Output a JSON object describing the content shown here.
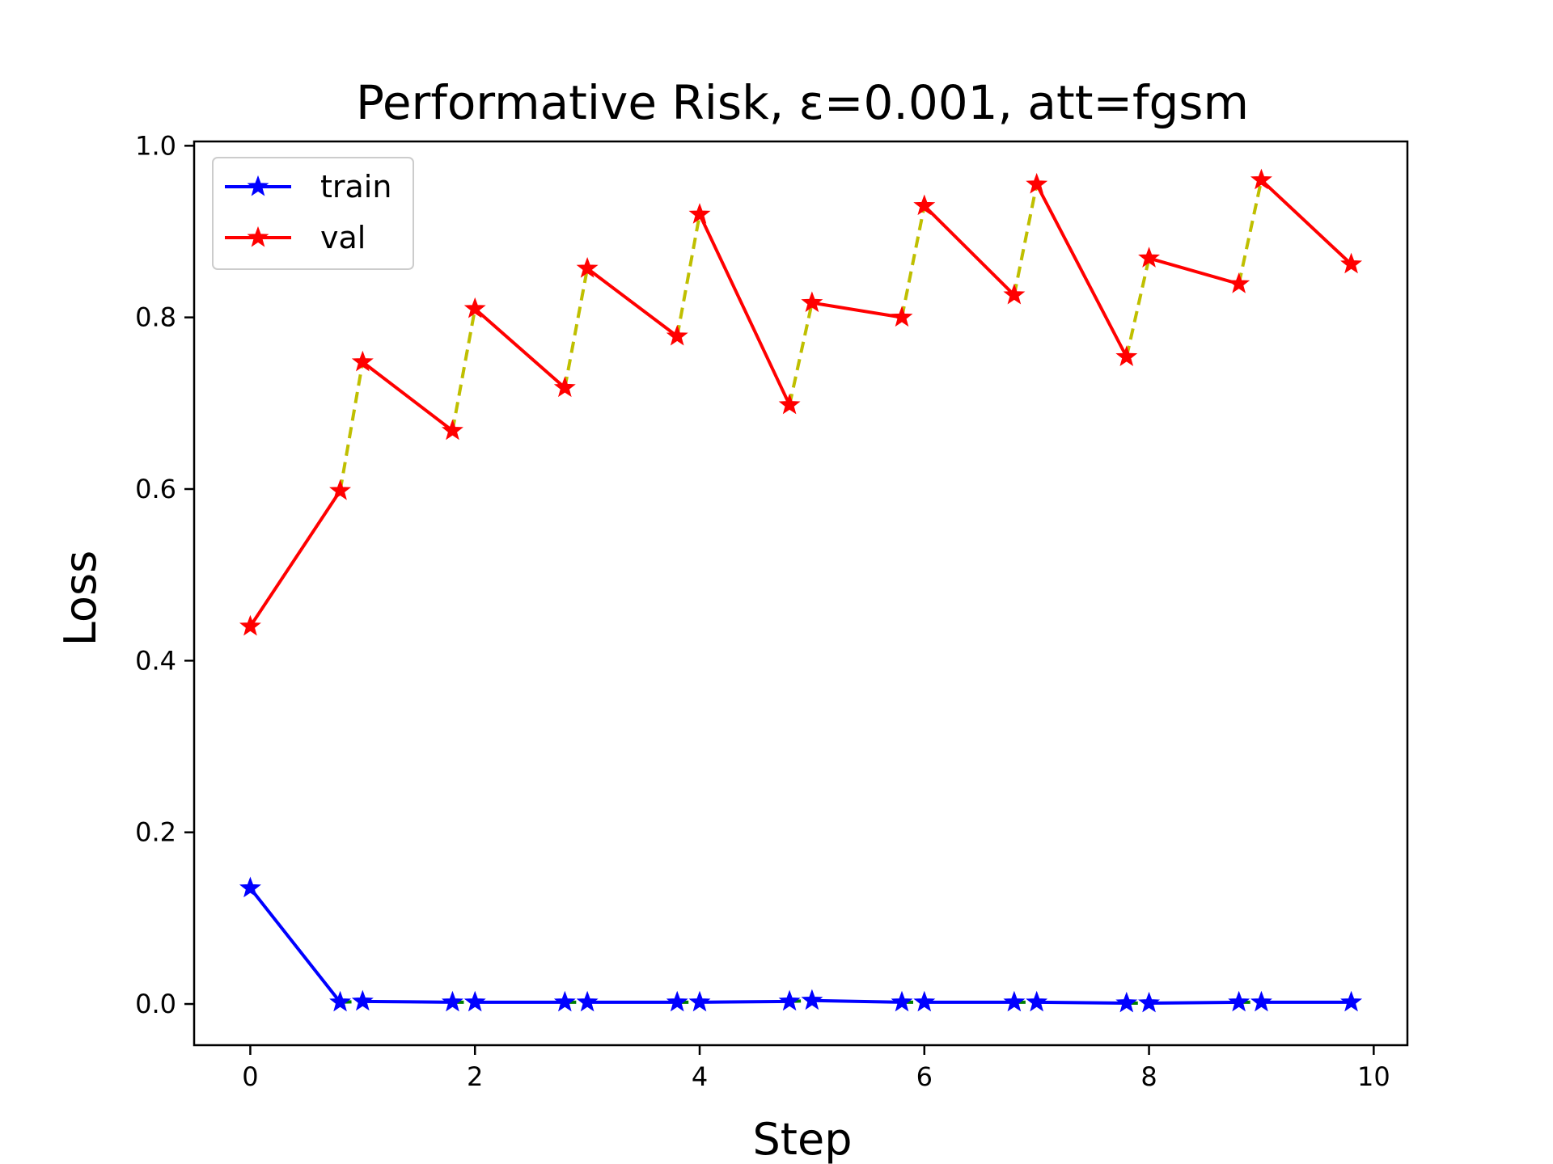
{
  "chart_data": {
    "type": "line",
    "title": "Performative Risk, ε=0.001, att=fgsm",
    "xlabel": "Step",
    "ylabel": "Loss",
    "xlim": [
      -0.5,
      10.3
    ],
    "ylim": [
      -0.048,
      1.005
    ],
    "xticks": [
      0,
      2,
      4,
      6,
      8,
      10
    ],
    "xtick_labels": [
      "0",
      "2",
      "4",
      "6",
      "8",
      "10"
    ],
    "yticks": [
      0.0,
      0.2,
      0.4,
      0.6,
      0.8,
      1.0
    ],
    "ytick_labels": [
      "0.0",
      "0.2",
      "0.4",
      "0.6",
      "0.8",
      "1.0"
    ],
    "grid": false,
    "legend_position": "top-left",
    "series": [
      {
        "name": "train",
        "color": "#0000ff",
        "marker": "star",
        "x": [
          0,
          0.8,
          1,
          1.8,
          2,
          2.8,
          3,
          3.8,
          4,
          4.8,
          5,
          5.8,
          6,
          6.8,
          7,
          7.8,
          8,
          8.8,
          9,
          9.8
        ],
        "y": [
          0.135,
          0.002,
          0.003,
          0.002,
          0.002,
          0.002,
          0.002,
          0.002,
          0.002,
          0.003,
          0.004,
          0.002,
          0.002,
          0.002,
          0.002,
          0.001,
          0.001,
          0.002,
          0.002,
          0.002
        ]
      },
      {
        "name": "val",
        "color": "#ff0000",
        "marker": "star",
        "x": [
          0,
          0.8,
          1,
          1.8,
          2,
          2.8,
          3,
          3.8,
          4,
          4.8,
          5,
          5.8,
          6,
          6.8,
          7,
          7.8,
          8,
          8.8,
          9,
          9.8
        ],
        "y": [
          0.44,
          0.598,
          0.748,
          0.668,
          0.81,
          0.718,
          0.857,
          0.778,
          0.92,
          0.698,
          0.817,
          0.8,
          0.93,
          0.826,
          0.955,
          0.754,
          0.869,
          0.839,
          0.96,
          0.862
        ]
      }
    ],
    "dashed_colors": {
      "val": "#bfbf00",
      "train": "#008000"
    }
  }
}
